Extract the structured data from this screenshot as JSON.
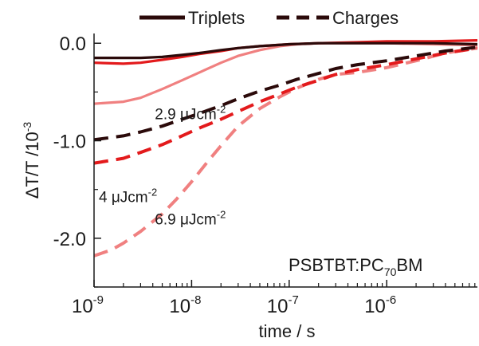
{
  "chart_data": {
    "type": "line",
    "x_scale": "log",
    "xlim": [
      1e-09,
      8.5e-06
    ],
    "ylim": [
      -2.5,
      0.1
    ],
    "xlabel": {
      "base": "time / s"
    },
    "ylabel": {
      "base": "ΔT/T /10",
      "sup": "-3"
    },
    "xticks": [
      {
        "value": 1e-09,
        "base": "10",
        "sup": "-9"
      },
      {
        "value": 1e-08,
        "base": "10",
        "sup": "-8"
      },
      {
        "value": 1e-07,
        "base": "10",
        "sup": "-7"
      },
      {
        "value": 1e-06,
        "base": "10",
        "sup": "-6"
      }
    ],
    "yticks": [
      {
        "value": 0.0,
        "label": "0.0"
      },
      {
        "value": -1.0,
        "label": "-1.0"
      },
      {
        "value": -2.0,
        "label": "-2.0"
      }
    ],
    "legend": {
      "placement": "top",
      "entries": [
        {
          "label": "Triplets",
          "style": "solid",
          "color": "#2b0a0a"
        },
        {
          "label": "Charges",
          "style": "dashed",
          "color": "#2b0a0a"
        }
      ]
    },
    "sample_label": {
      "base": "PSBTBT:PC",
      "sub": "70",
      "tail": "BM"
    },
    "annotations": [
      {
        "base": "2.9 μJcm",
        "sup": "-2",
        "x": 4.2e-09,
        "y": -0.78
      },
      {
        "base": "4 μJcm",
        "sup": "-2",
        "x": 1.12e-09,
        "y": -1.63
      },
      {
        "base": "6.9 μJcm",
        "sup": "-2",
        "x": 4.2e-09,
        "y": -1.86
      }
    ],
    "series": [
      {
        "kind": "triplets",
        "fluence": "2.9",
        "style": "solid",
        "color": "#f08080",
        "x": [
          1e-09,
          2e-09,
          3e-09,
          5e-09,
          8e-09,
          1.2e-08,
          2e-08,
          3e-08,
          5e-08,
          8e-08,
          1.2e-07,
          2e-07,
          5e-07,
          1e-06,
          3e-06,
          8.5e-06
        ],
        "y": [
          -0.62,
          -0.6,
          -0.56,
          -0.47,
          -0.38,
          -0.3,
          -0.2,
          -0.13,
          -0.07,
          -0.03,
          -0.01,
          0.0,
          0.0,
          0.0,
          -0.01,
          -0.02
        ]
      },
      {
        "kind": "triplets",
        "fluence": "4",
        "style": "solid",
        "color": "#e31a1c",
        "x": [
          1e-09,
          2e-09,
          3e-09,
          5e-09,
          8e-09,
          1.2e-08,
          2e-08,
          3e-08,
          5e-08,
          1e-07,
          2e-07,
          5e-07,
          1e-06,
          3e-06,
          8.5e-06
        ],
        "y": [
          -0.2,
          -0.21,
          -0.2,
          -0.17,
          -0.14,
          -0.11,
          -0.08,
          -0.05,
          -0.03,
          -0.01,
          0.0,
          0.01,
          0.02,
          0.02,
          0.03
        ]
      },
      {
        "kind": "triplets",
        "fluence": "6.9",
        "style": "solid",
        "color": "#2b0a0a",
        "x": [
          1e-09,
          2e-09,
          3e-09,
          5e-09,
          8e-09,
          1.2e-08,
          2e-08,
          3e-08,
          5e-08,
          1e-07,
          2e-07,
          5e-07,
          1e-06,
          3e-06,
          8.5e-06
        ],
        "y": [
          -0.15,
          -0.15,
          -0.15,
          -0.14,
          -0.12,
          -0.1,
          -0.07,
          -0.05,
          -0.03,
          -0.01,
          0.0,
          0.0,
          0.0,
          0.0,
          -0.01
        ]
      },
      {
        "kind": "charges",
        "fluence": "6.9",
        "style": "dashed",
        "color": "#f08080",
        "x": [
          1e-09,
          1.5e-09,
          2e-09,
          3e-09,
          5e-09,
          7e-09,
          1e-08,
          1.5e-08,
          2e-08,
          3e-08,
          5e-08,
          8e-08,
          1.2e-07,
          2e-07,
          3e-07,
          5e-07,
          1e-06,
          2e-06,
          4e-06,
          8.5e-06
        ],
        "y": [
          -2.18,
          -2.12,
          -2.05,
          -1.93,
          -1.75,
          -1.6,
          -1.42,
          -1.2,
          -1.05,
          -0.85,
          -0.67,
          -0.55,
          -0.46,
          -0.37,
          -0.32,
          -0.3,
          -0.25,
          -0.18,
          -0.1,
          -0.05
        ]
      },
      {
        "kind": "charges",
        "fluence": "4",
        "style": "dashed",
        "color": "#e31a1c",
        "x": [
          1e-09,
          2e-09,
          3e-09,
          5e-09,
          8e-09,
          1.2e-08,
          2e-08,
          3e-08,
          5e-08,
          8e-08,
          1.2e-07,
          2e-07,
          3e-07,
          5e-07,
          1e-06,
          2e-06,
          4e-06,
          8.5e-06
        ],
        "y": [
          -1.23,
          -1.18,
          -1.12,
          -1.04,
          -0.95,
          -0.87,
          -0.78,
          -0.7,
          -0.6,
          -0.52,
          -0.45,
          -0.38,
          -0.32,
          -0.27,
          -0.22,
          -0.16,
          -0.1,
          -0.05
        ]
      },
      {
        "kind": "charges",
        "fluence": "2.9",
        "style": "dashed",
        "color": "#2b0a0a",
        "x": [
          1e-09,
          2e-09,
          3e-09,
          5e-09,
          8e-09,
          1.2e-08,
          2e-08,
          3e-08,
          5e-08,
          8e-08,
          1.2e-07,
          2e-07,
          3e-07,
          5e-07,
          1e-06,
          2e-06,
          4e-06,
          8.5e-06
        ],
        "y": [
          -0.99,
          -0.95,
          -0.91,
          -0.85,
          -0.78,
          -0.72,
          -0.64,
          -0.57,
          -0.49,
          -0.43,
          -0.37,
          -0.31,
          -0.26,
          -0.22,
          -0.18,
          -0.13,
          -0.08,
          -0.04
        ]
      }
    ]
  }
}
